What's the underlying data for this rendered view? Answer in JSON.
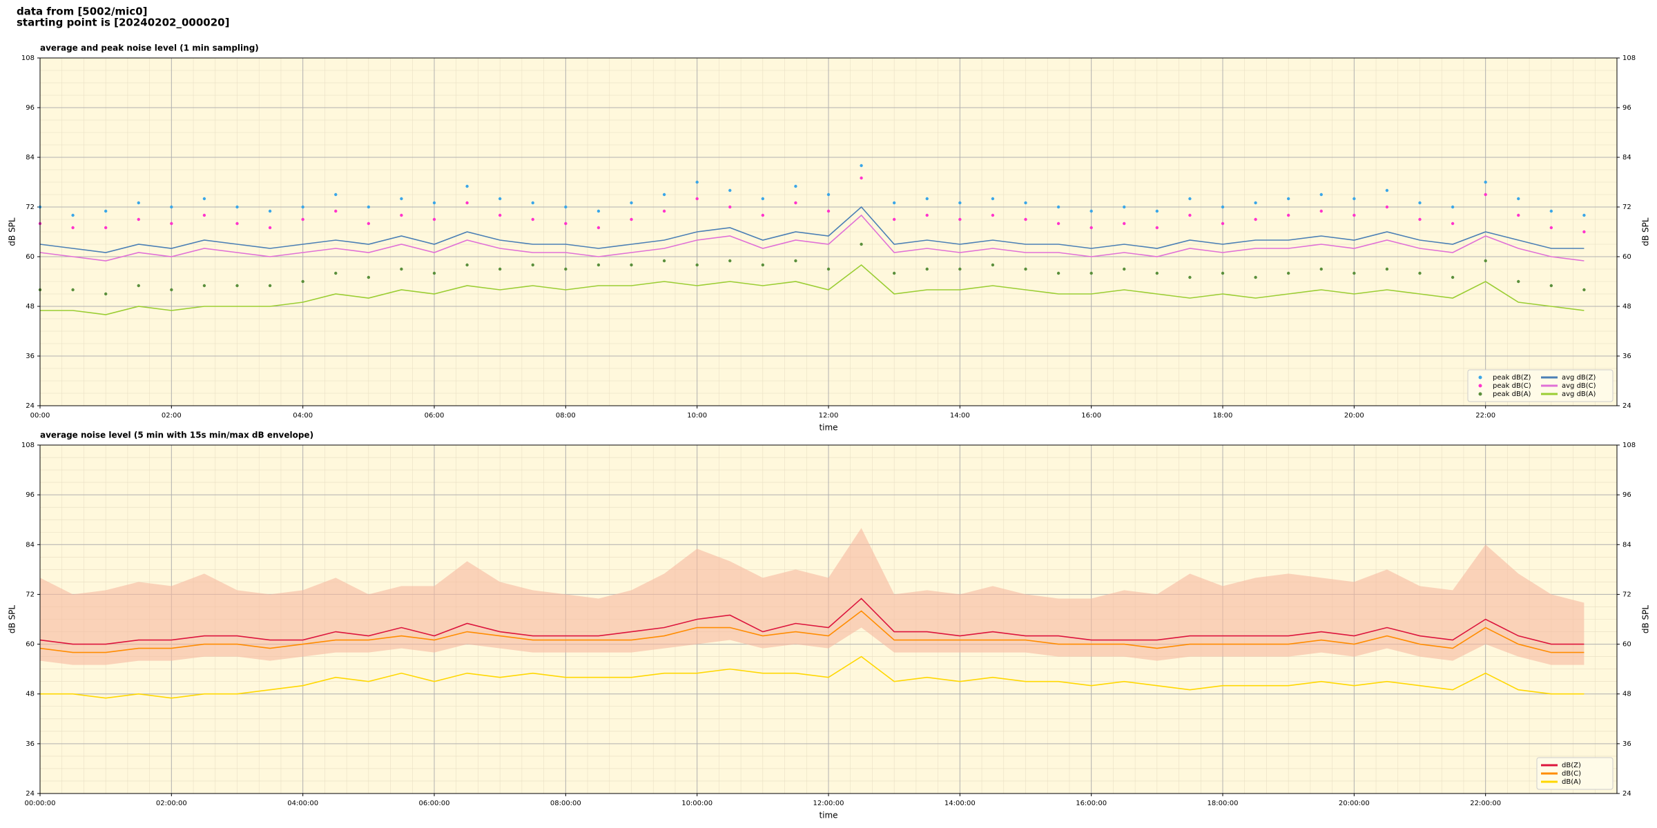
{
  "header": {
    "line1": "data from [5002/mic0]",
    "line2": "starting point is [20240202_000020]"
  },
  "chart_data": [
    {
      "type": "line",
      "title": "average and peak noise level (1 min sampling)",
      "x_label": "time",
      "y_label": "dB SPL",
      "background": "#fff8dc",
      "grid": true,
      "legend": "lower right",
      "legend_ncol": 2,
      "xlim": [
        0,
        24
      ],
      "ylim": [
        24,
        108
      ],
      "yticks": [
        24,
        36,
        48,
        60,
        72,
        84,
        96,
        108
      ],
      "xticks": [
        {
          "value": 0,
          "label": "00:00"
        },
        {
          "value": 2,
          "label": "02:00"
        },
        {
          "value": 4,
          "label": "04:00"
        },
        {
          "value": 6,
          "label": "06:00"
        },
        {
          "value": 8,
          "label": "08:00"
        },
        {
          "value": 10,
          "label": "10:00"
        },
        {
          "value": 12,
          "label": "12:00"
        },
        {
          "value": 14,
          "label": "14:00"
        },
        {
          "value": 16,
          "label": "16:00"
        },
        {
          "value": 18,
          "label": "18:00"
        },
        {
          "value": 20,
          "label": "20:00"
        },
        {
          "value": 22,
          "label": "22:00"
        }
      ],
      "x": [
        0,
        0.5,
        1,
        1.5,
        2,
        2.5,
        3,
        3.5,
        4,
        4.5,
        5,
        5.5,
        6,
        6.5,
        7,
        7.5,
        8,
        8.5,
        9,
        9.5,
        10,
        10.5,
        11,
        11.5,
        12,
        12.5,
        13,
        13.5,
        14,
        14.5,
        15,
        15.5,
        16,
        16.5,
        17,
        17.5,
        18,
        18.5,
        19,
        19.5,
        20,
        20.5,
        21,
        21.5,
        22,
        22.5,
        23,
        23.5
      ],
      "series": [
        {
          "name": "peak dB(Z)",
          "type": "scatter",
          "color": "#3aa6e8",
          "values": [
            72,
            70,
            71,
            73,
            72,
            74,
            72,
            71,
            72,
            75,
            72,
            74,
            73,
            77,
            74,
            73,
            72,
            71,
            73,
            75,
            78,
            76,
            74,
            77,
            75,
            82,
            73,
            74,
            73,
            74,
            73,
            72,
            71,
            72,
            71,
            74,
            72,
            73,
            74,
            75,
            74,
            76,
            73,
            72,
            78,
            74,
            71,
            70
          ]
        },
        {
          "name": "peak dB(C)",
          "type": "scatter",
          "color": "#ff33cc",
          "values": [
            68,
            67,
            67,
            69,
            68,
            70,
            68,
            67,
            69,
            71,
            68,
            70,
            69,
            73,
            70,
            69,
            68,
            67,
            69,
            71,
            74,
            72,
            70,
            73,
            71,
            79,
            69,
            70,
            69,
            70,
            69,
            68,
            67,
            68,
            67,
            70,
            68,
            69,
            70,
            71,
            70,
            72,
            69,
            68,
            75,
            70,
            67,
            66
          ]
        },
        {
          "name": "peak dB(A)",
          "type": "scatter",
          "color": "#5a8f3c",
          "values": [
            52,
            52,
            51,
            53,
            52,
            53,
            53,
            53,
            54,
            56,
            55,
            57,
            56,
            58,
            57,
            58,
            57,
            58,
            58,
            59,
            58,
            59,
            58,
            59,
            57,
            63,
            56,
            57,
            57,
            58,
            57,
            56,
            56,
            57,
            56,
            55,
            56,
            55,
            56,
            57,
            56,
            57,
            56,
            55,
            59,
            54,
            53,
            52
          ]
        },
        {
          "name": "avg dB(Z)",
          "type": "line",
          "color": "#4a7fb5",
          "values": [
            63,
            62,
            61,
            63,
            62,
            64,
            63,
            62,
            63,
            64,
            63,
            65,
            63,
            66,
            64,
            63,
            63,
            62,
            63,
            64,
            66,
            67,
            64,
            66,
            65,
            72,
            63,
            64,
            63,
            64,
            63,
            63,
            62,
            63,
            62,
            64,
            63,
            64,
            64,
            65,
            64,
            66,
            64,
            63,
            66,
            64,
            62,
            62
          ]
        },
        {
          "name": "avg dB(C)",
          "type": "line",
          "color": "#e070d6",
          "values": [
            61,
            60,
            59,
            61,
            60,
            62,
            61,
            60,
            61,
            62,
            61,
            63,
            61,
            64,
            62,
            61,
            61,
            60,
            61,
            62,
            64,
            65,
            62,
            64,
            63,
            70,
            61,
            62,
            61,
            62,
            61,
            61,
            60,
            61,
            60,
            62,
            61,
            62,
            62,
            63,
            62,
            64,
            62,
            61,
            65,
            62,
            60,
            59
          ]
        },
        {
          "name": "avg dB(A)",
          "type": "line",
          "color": "#9acd32",
          "values": [
            47,
            47,
            46,
            48,
            47,
            48,
            48,
            48,
            49,
            51,
            50,
            52,
            51,
            53,
            52,
            53,
            52,
            53,
            53,
            54,
            53,
            54,
            53,
            54,
            52,
            58,
            51,
            52,
            52,
            53,
            52,
            51,
            51,
            52,
            51,
            50,
            51,
            50,
            51,
            52,
            51,
            52,
            51,
            50,
            54,
            49,
            48,
            47
          ]
        }
      ]
    },
    {
      "type": "line",
      "title": "average noise level (5 min with 15s min/max dB envelope)",
      "x_label": "time",
      "y_label": "dB SPL",
      "background": "#fff8dc",
      "grid": true,
      "legend": "lower right",
      "legend_ncol": 1,
      "xlim": [
        0,
        24
      ],
      "ylim": [
        24,
        108
      ],
      "yticks": [
        24,
        36,
        48,
        60,
        72,
        84,
        96,
        108
      ],
      "xticks": [
        {
          "value": 0,
          "label": "00:00:00"
        },
        {
          "value": 2,
          "label": "02:00:00"
        },
        {
          "value": 4,
          "label": "04:00:00"
        },
        {
          "value": 6,
          "label": "06:00:00"
        },
        {
          "value": 8,
          "label": "08:00:00"
        },
        {
          "value": 10,
          "label": "10:00:00"
        },
        {
          "value": 12,
          "label": "12:00:00"
        },
        {
          "value": 14,
          "label": "14:00:00"
        },
        {
          "value": 16,
          "label": "16:00:00"
        },
        {
          "value": 18,
          "label": "18:00:00"
        },
        {
          "value": 20,
          "label": "20:00:00"
        },
        {
          "value": 22,
          "label": "22:00:00"
        }
      ],
      "x": [
        0,
        0.5,
        1,
        1.5,
        2,
        2.5,
        3,
        3.5,
        4,
        4.5,
        5,
        5.5,
        6,
        6.5,
        7,
        7.5,
        8,
        8.5,
        9,
        9.5,
        10,
        10.5,
        11,
        11.5,
        12,
        12.5,
        13,
        13.5,
        14,
        14.5,
        15,
        15.5,
        16,
        16.5,
        17,
        17.5,
        18,
        18.5,
        19,
        19.5,
        20,
        20.5,
        21,
        21.5,
        22,
        22.5,
        23,
        23.5
      ],
      "envelope": {
        "color": "#f7b9a0",
        "max": [
          76,
          72,
          73,
          75,
          74,
          77,
          73,
          72,
          73,
          76,
          72,
          74,
          74,
          80,
          75,
          73,
          72,
          71,
          73,
          77,
          83,
          80,
          76,
          78,
          76,
          88,
          72,
          73,
          72,
          74,
          72,
          71,
          71,
          73,
          72,
          77,
          74,
          76,
          77,
          76,
          75,
          78,
          74,
          73,
          84,
          77,
          72,
          70
        ],
        "min": [
          56,
          55,
          55,
          56,
          56,
          57,
          57,
          56,
          57,
          58,
          58,
          59,
          58,
          60,
          59,
          58,
          58,
          58,
          58,
          59,
          60,
          61,
          59,
          60,
          59,
          64,
          58,
          58,
          58,
          58,
          58,
          57,
          57,
          57,
          56,
          57,
          57,
          57,
          57,
          58,
          57,
          59,
          57,
          56,
          60,
          57,
          55,
          55
        ]
      },
      "series": [
        {
          "name": "dB(Z)",
          "type": "line",
          "color": "#dc143c",
          "values": [
            61,
            60,
            60,
            61,
            61,
            62,
            62,
            61,
            61,
            63,
            62,
            64,
            62,
            65,
            63,
            62,
            62,
            62,
            63,
            64,
            66,
            67,
            63,
            65,
            64,
            71,
            63,
            63,
            62,
            63,
            62,
            62,
            61,
            61,
            61,
            62,
            62,
            62,
            62,
            63,
            62,
            64,
            62,
            61,
            66,
            62,
            60,
            60
          ]
        },
        {
          "name": "dB(C)",
          "type": "line",
          "color": "#ff8c00",
          "values": [
            59,
            58,
            58,
            59,
            59,
            60,
            60,
            59,
            60,
            61,
            61,
            62,
            61,
            63,
            62,
            61,
            61,
            61,
            61,
            62,
            64,
            64,
            62,
            63,
            62,
            68,
            61,
            61,
            61,
            61,
            61,
            60,
            60,
            60,
            59,
            60,
            60,
            60,
            60,
            61,
            60,
            62,
            60,
            59,
            64,
            60,
            58,
            58
          ]
        },
        {
          "name": "dB(A)",
          "type": "line",
          "color": "#ffd700",
          "values": [
            48,
            48,
            47,
            48,
            47,
            48,
            48,
            49,
            50,
            52,
            51,
            53,
            51,
            53,
            52,
            53,
            52,
            52,
            52,
            53,
            53,
            54,
            53,
            53,
            52,
            57,
            51,
            52,
            51,
            52,
            51,
            51,
            50,
            51,
            50,
            49,
            50,
            50,
            50,
            51,
            50,
            51,
            50,
            49,
            53,
            49,
            48,
            48
          ]
        }
      ]
    }
  ]
}
